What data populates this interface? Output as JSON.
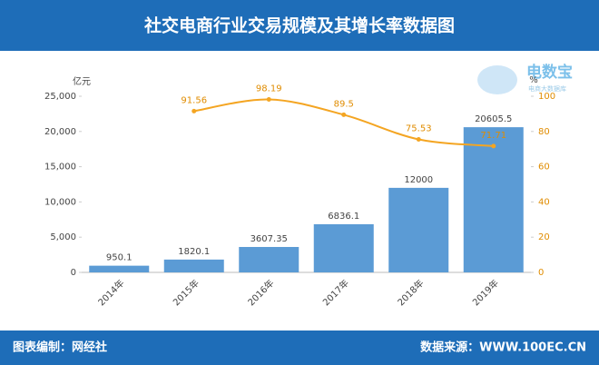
{
  "chart_data": {
    "type": "bar",
    "title": "社交电商行业交易规模及其增长率数据图",
    "categories": [
      "2014年",
      "2015年",
      "2016年",
      "2017年",
      "2018年",
      "2019年"
    ],
    "ylabel": "亿元",
    "y2label": "%",
    "series": [
      {
        "type": "bar",
        "color": "#5b9bd5",
        "values": [
          950.1,
          1820.1,
          3607.35,
          6836.1,
          12000,
          20605.5
        ]
      },
      {
        "type": "line",
        "axis": "y2",
        "color": "#f4a522",
        "values": [
          null,
          91.56,
          98.19,
          89.5,
          75.53,
          71.71
        ]
      }
    ],
    "ylim": [
      0,
      25000
    ],
    "yticks": [
      0,
      {
        "value": 5000,
        "label": "5,000"
      },
      {
        "value": 10000,
        "label": "10,000"
      },
      {
        "value": 15000,
        "label": "15,000"
      },
      {
        "value": 20000,
        "label": "20,000"
      },
      {
        "value": 25000,
        "label": "25,000"
      }
    ],
    "y2lim": [
      0,
      100
    ],
    "y2ticks": [
      0,
      20,
      40,
      60,
      80,
      100
    ],
    "grid": false
  },
  "logo": {
    "name": "电数宝",
    "tagline": "电商大数据库"
  },
  "footer": {
    "left": "图表编制：网经社",
    "right": "数据来源：WWW.100EC.CN"
  }
}
